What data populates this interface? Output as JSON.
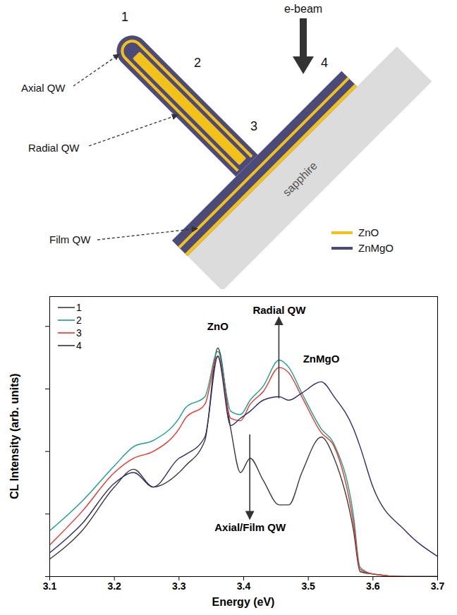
{
  "diagram": {
    "labels": {
      "positions": [
        "1",
        "2",
        "3",
        "4"
      ],
      "e_beam": "e-beam",
      "axial_qw": "Axial QW",
      "radial_qw": "Radial QW",
      "film_qw": "Film QW",
      "substrate": "sapphire"
    },
    "legend": [
      {
        "name": "ZnO",
        "color": "#f2c21b"
      },
      {
        "name": "ZnMgO",
        "color": "#4b4a78"
      }
    ]
  },
  "chart_data": {
    "type": "line",
    "x_label": "Energy (eV)",
    "y_label": "CL Intensity (arb. units)",
    "x": [
      3.1,
      3.15,
      3.2,
      3.23,
      3.26,
      3.3,
      3.31,
      3.34,
      3.36,
      3.38,
      3.395,
      3.41,
      3.43,
      3.455,
      3.47,
      3.49,
      3.52,
      3.54,
      3.57,
      3.58,
      3.6,
      3.65,
      3.7
    ],
    "series": [
      {
        "name": "1",
        "color": "#3a3a3a",
        "values": [
          1.9,
          5.4,
          27,
          52,
          27,
          46,
          59,
          150,
          4500,
          230,
          46,
          78,
          35,
          14,
          14,
          46,
          170,
          78,
          5.4,
          1.2,
          1.1,
          1.0,
          1.0
        ]
      },
      {
        "name": "2",
        "color": "#1b9e8a",
        "values": [
          5.4,
          16,
          59,
          120,
          150,
          340,
          500,
          750,
          4000,
          440,
          390,
          660,
          1100,
          2900,
          2200,
          860,
          230,
          130,
          9.2,
          1.4,
          1.1,
          1.0,
          1.0
        ]
      },
      {
        "name": "3",
        "color": "#e8352b",
        "values": [
          3.2,
          11,
          46,
          78,
          100,
          230,
          340,
          570,
          3400,
          340,
          310,
          570,
          900,
          2200,
          1800,
          750,
          200,
          120,
          7.0,
          1.3,
          1.1,
          1.0,
          1.0
        ]
      },
      {
        "name": "4",
        "color": "#2e2a6b",
        "values": [
          2.4,
          7.0,
          31,
          46,
          27,
          78,
          89,
          170,
          3300,
          260,
          340,
          440,
          660,
          750,
          660,
          860,
          1300,
          750,
          230,
          120,
          27,
          5.4,
          2.1
        ]
      }
    ],
    "xlim": [
      3.1,
      3.7
    ],
    "xticks": [
      3.1,
      3.2,
      3.3,
      3.4,
      3.5,
      3.6,
      3.7
    ],
    "ylim": [
      1,
      30000
    ],
    "yticks": [
      1,
      10,
      100,
      1000,
      10000
    ],
    "log": "y",
    "grid": false,
    "tick_labels": "x",
    "legend": "top-left",
    "annotations": [
      {
        "text": "ZnO",
        "x": 3.36,
        "y": 10000
      },
      {
        "text": "Radial QW",
        "x": 3.455,
        "y": 18000,
        "arrow": "up"
      },
      {
        "text": "ZnMgO",
        "x": 3.52,
        "y": 3000
      },
      {
        "text": "Axial/Film QW",
        "x": 3.41,
        "y": 6,
        "arrow": "down"
      }
    ]
  }
}
